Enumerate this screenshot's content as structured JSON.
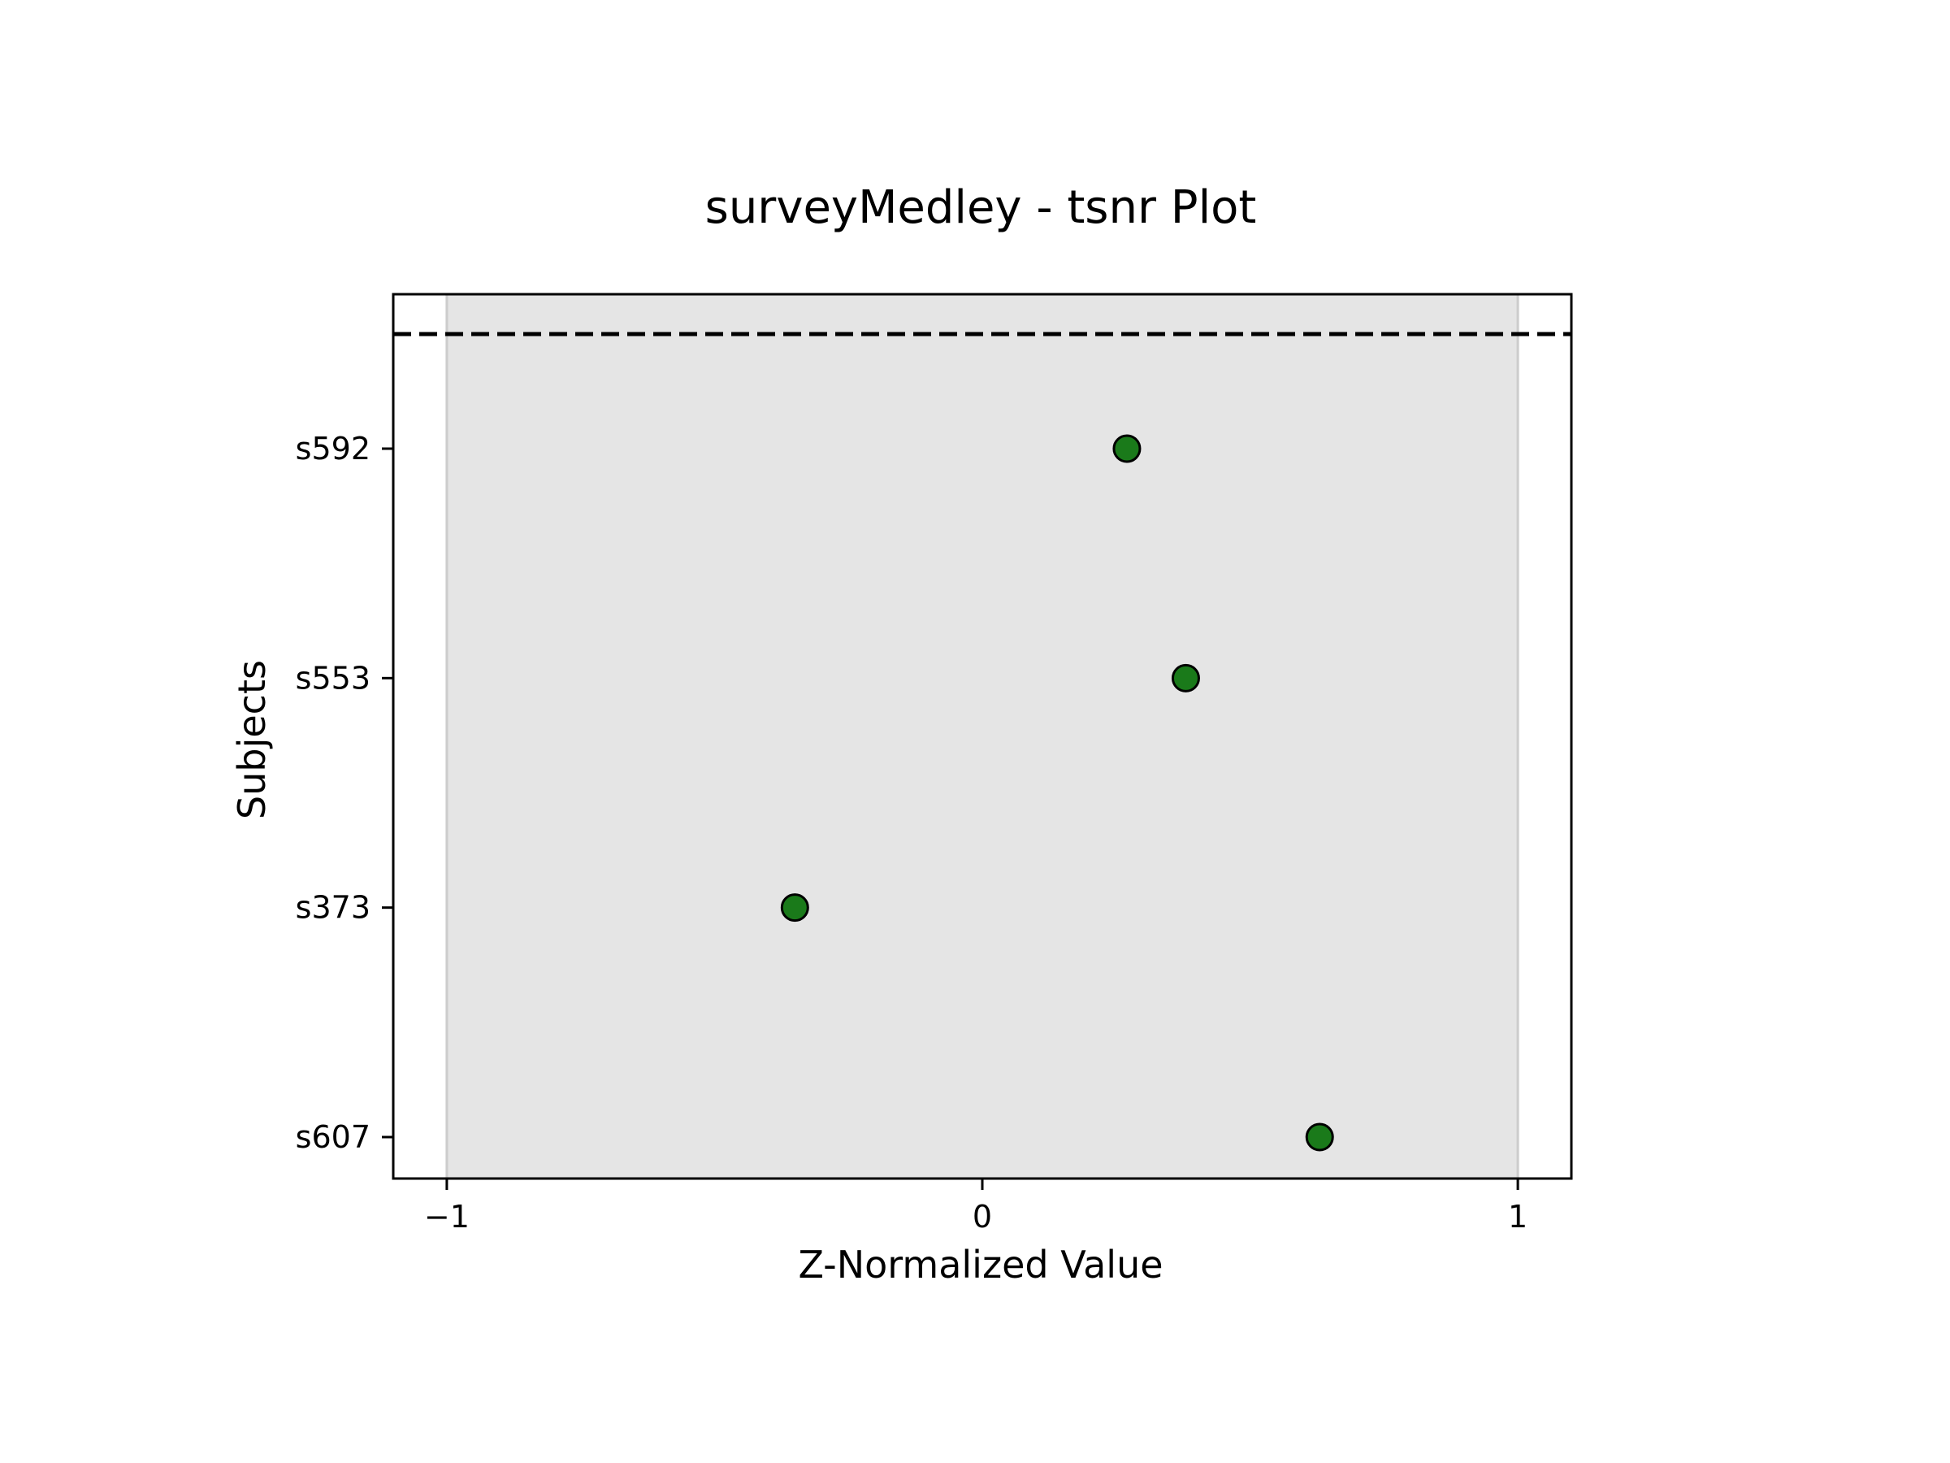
{
  "chart_data": {
    "type": "scatter",
    "title": "surveyMedley - tsnr Plot",
    "xlabel": "Z-Normalized Value",
    "ylabel": "Subjects",
    "xlim": [
      -1.1,
      1.1
    ],
    "xticks": [
      -1,
      0,
      1
    ],
    "xtick_labels": [
      "−1",
      "0",
      "1"
    ],
    "categories": [
      "s607",
      "s373",
      "s553",
      "s592"
    ],
    "values": [
      0.63,
      -0.35,
      0.38,
      0.27
    ],
    "shaded_band": [
      -1,
      1
    ],
    "reference_line": {
      "style": "dashed",
      "position": "above top subject"
    },
    "grid": false,
    "legend": "none",
    "colors": {
      "point_fill": "#1a7a1a",
      "point_edge": "#000000",
      "band": "#e5e5e5",
      "band_edge": "#cccccc",
      "reference_line": "#000000"
    }
  }
}
